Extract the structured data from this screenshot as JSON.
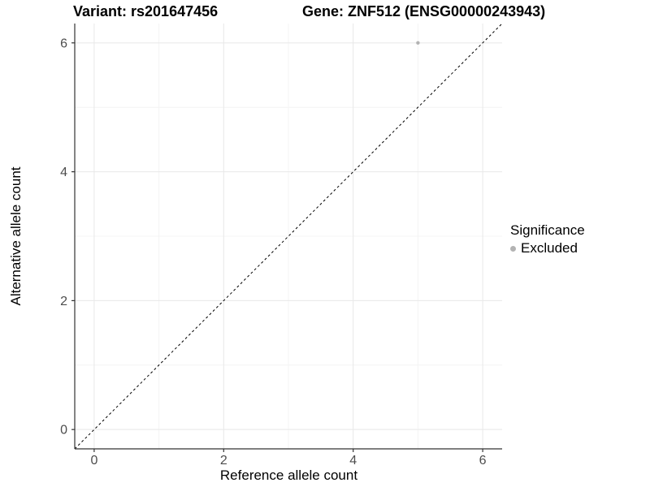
{
  "titles": {
    "left": "Variant: rs201647456",
    "right": "Gene: ZNF512 (ENSG00000243943)"
  },
  "chart_data": {
    "type": "scatter",
    "title": "Variant: rs201647456 — Gene: ZNF512 (ENSG00000243943)",
    "xlabel": "Reference allele count",
    "ylabel": "Alternative allele count",
    "xlim": [
      -0.3,
      6.3
    ],
    "ylim": [
      -0.3,
      6.3
    ],
    "xticks": [
      0,
      2,
      4,
      6
    ],
    "yticks": [
      0,
      2,
      4,
      6
    ],
    "minor_gridlines": [
      1,
      3,
      5
    ],
    "grid": "on",
    "series": [
      {
        "name": "Excluded",
        "color": "#b3b3b3",
        "points": [
          {
            "x": 5,
            "y": 6
          }
        ]
      }
    ],
    "reference_line": {
      "slope": 1,
      "intercept": 0,
      "style": "dashed",
      "color": "#000000"
    },
    "legend": {
      "title": "Significance",
      "position": "right",
      "entries": [
        {
          "label": "Excluded",
          "color": "#b3b3b3"
        }
      ]
    },
    "colors": {
      "grid_major": "#e8e8e8",
      "grid_minor": "#f4f4f4",
      "axis": "#333333",
      "tick_label": "#4d4d4d",
      "background": "#ffffff"
    }
  }
}
